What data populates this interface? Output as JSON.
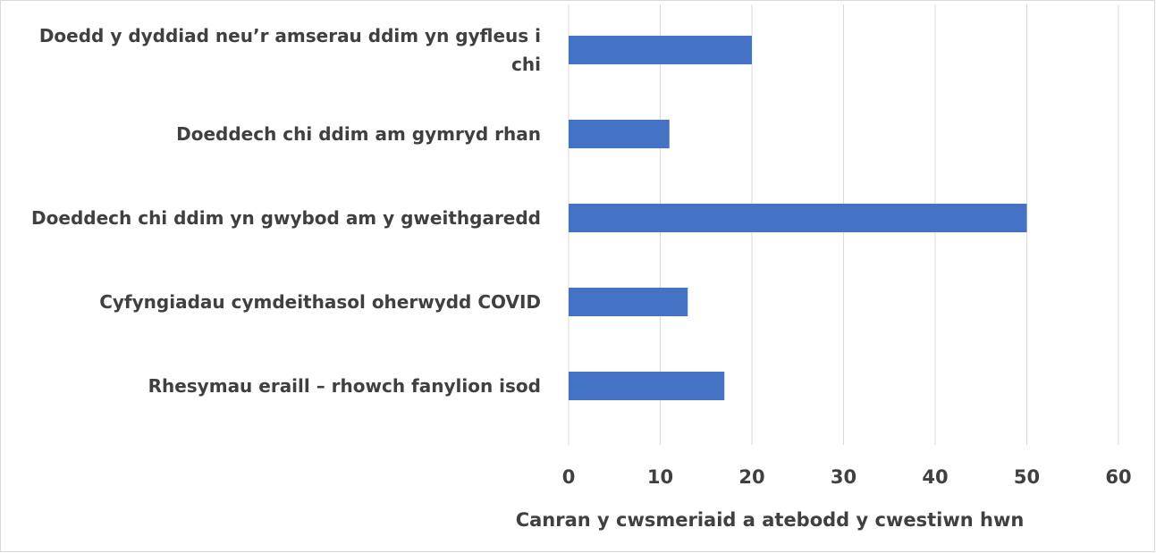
{
  "chart_data": {
    "type": "bar",
    "orientation": "horizontal",
    "categories": [
      "Doedd y dyddiad neu’r amserau ddim yn gyfleus i chi",
      "Doeddech chi ddim am gymryd rhan",
      "Doeddech chi ddim yn gwybod am y gweithgaredd",
      "Cyfyngiadau cymdeithasol oherwydd COVID",
      "Rhesymau eraill – rhowch fanylion isod"
    ],
    "values": [
      20,
      11,
      50,
      13,
      17
    ],
    "color": "#4472c4",
    "xlabel": "Canran y cwsmeriaid a atebodd y cwestiwn hwn",
    "xlim": [
      0,
      60
    ],
    "xticks": [
      0,
      10,
      20,
      30,
      40,
      50,
      60
    ],
    "grid": true
  }
}
